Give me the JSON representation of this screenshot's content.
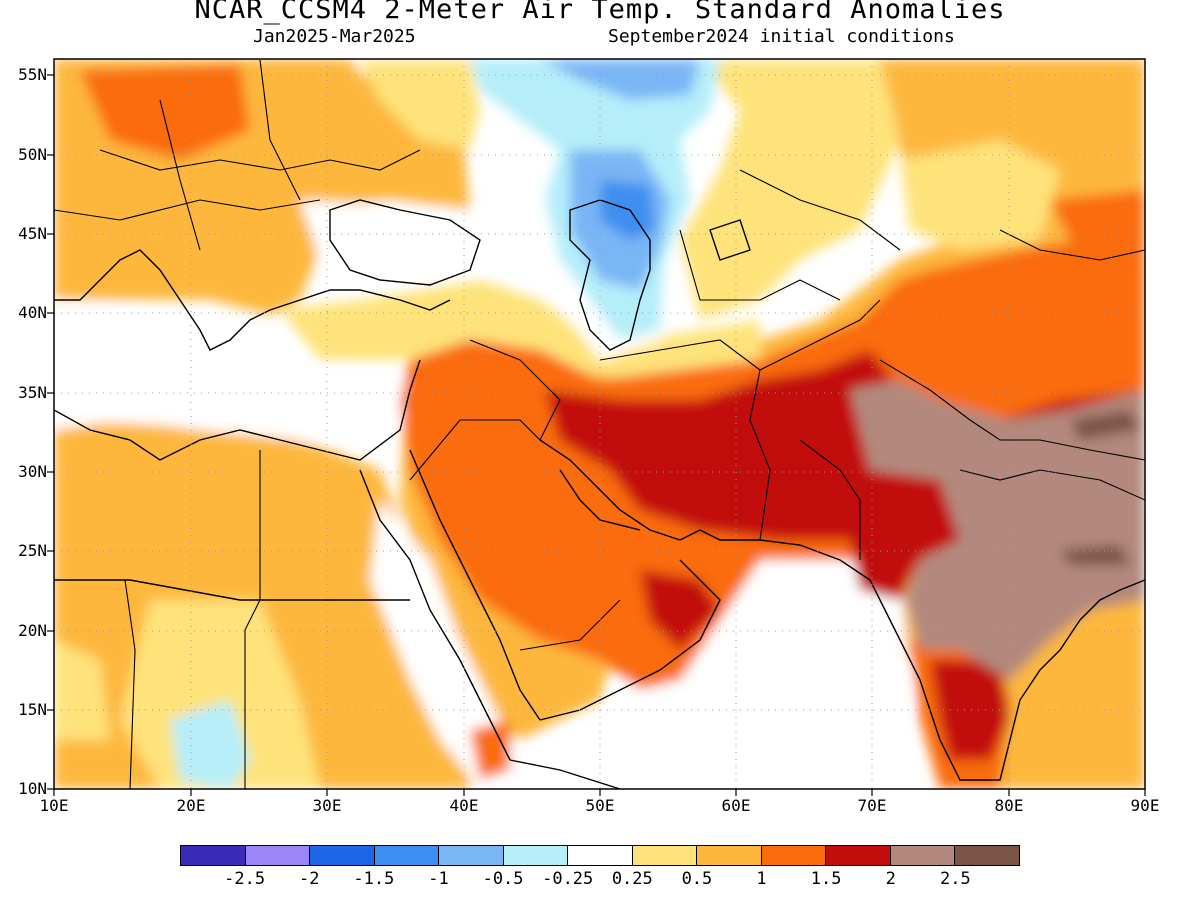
{
  "title": "NCAR_CCSM4 2-Meter Air Temp. Standard Anomalies",
  "subtitle_left": "Jan2025-Mar2025",
  "subtitle_right": "September2024 initial conditions",
  "lat_labels": [
    "55N",
    "50N",
    "45N",
    "40N",
    "35N",
    "30N",
    "25N",
    "20N",
    "15N",
    "10N"
  ],
  "lon_labels": [
    "10E",
    "20E",
    "30E",
    "40E",
    "50E",
    "60E",
    "70E",
    "80E",
    "90E"
  ],
  "legend": {
    "colors": [
      "#3a2bb8",
      "#9d86f5",
      "#1f66e6",
      "#3d8ef0",
      "#7ab5f5",
      "#b5eef9",
      "#ffffff",
      "#fee37a",
      "#fdb73d",
      "#fa6c0c",
      "#c20d0d",
      "#b3897d",
      "#7a5545"
    ],
    "labels": [
      "-2.5",
      "-2",
      "-1.5",
      "-1",
      "-0.5",
      "-0.25",
      "0.25",
      "0.5",
      "1",
      "1.5",
      "2",
      "2.5"
    ]
  },
  "map_extent": {
    "lon": [
      10,
      90
    ],
    "lat": [
      10,
      56
    ]
  }
}
